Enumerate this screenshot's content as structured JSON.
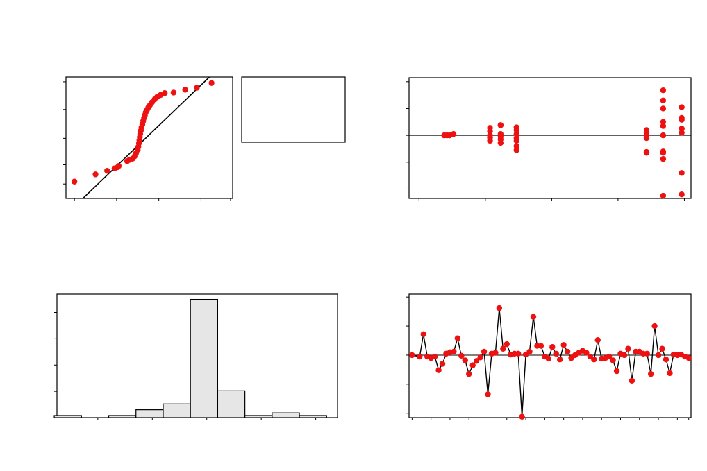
{
  "chart_data": [
    {
      "type": "scatter",
      "panel": "normal-probability-plot",
      "xlim": [
        -3.7,
        4.2
      ],
      "ylim": [
        -2.7,
        2.35
      ],
      "xticks": [
        -3.3,
        -1.3,
        0.7,
        2.7,
        4.1
      ],
      "yticks": [
        -2.1,
        -1.3,
        -0.2,
        1.0,
        2.15
      ],
      "fit_line": {
        "x": [
          -2.9,
          3.1
        ],
        "y": [
          -2.7,
          2.35
        ]
      },
      "legend_box": "right",
      "points": {
        "x": [
          -3.3,
          -2.3,
          -1.75,
          -1.4,
          -1.25,
          -1.2,
          -0.8,
          -0.7,
          -0.55,
          -0.45,
          -0.38,
          -0.3,
          -0.27,
          -0.24,
          -0.22,
          -0.2,
          -0.18,
          -0.15,
          -0.12,
          -0.08,
          -0.04,
          0.0,
          0.04,
          0.08,
          0.14,
          0.2,
          0.28,
          0.38,
          0.5,
          0.62,
          0.78,
          0.98,
          1.4,
          1.95,
          2.5,
          3.2
        ],
        "y": [
          -2.0,
          -1.7,
          -1.55,
          -1.45,
          -1.4,
          -1.35,
          -1.15,
          -1.1,
          -1.05,
          -0.95,
          -0.82,
          -0.68,
          -0.55,
          -0.4,
          -0.28,
          -0.15,
          -0.02,
          0.12,
          0.25,
          0.38,
          0.52,
          0.65,
          0.76,
          0.88,
          0.98,
          1.08,
          1.18,
          1.3,
          1.42,
          1.52,
          1.6,
          1.68,
          1.7,
          1.82,
          1.9,
          2.1
        ]
      }
    },
    {
      "type": "scatter",
      "panel": "residuals-vs-fits",
      "xlim": [
        -0.15,
        4.1
      ],
      "ylim": [
        -2.35,
        2.15
      ],
      "xticks": [
        0.0,
        1.0,
        2.0,
        3.0,
        4.0
      ],
      "yticks": [
        -2.0,
        -1.0,
        0.0,
        1.0,
        2.0
      ],
      "reference_y": 0,
      "points": {
        "x": [
          0.38,
          0.42,
          0.46,
          0.52,
          1.07,
          1.07,
          1.07,
          1.07,
          1.07,
          1.23,
          1.23,
          1.23,
          1.23,
          1.23,
          1.23,
          1.47,
          1.47,
          1.47,
          1.47,
          1.47,
          1.47,
          1.47,
          3.43,
          3.43,
          3.43,
          3.43,
          3.43,
          3.43,
          3.68,
          3.68,
          3.68,
          3.68,
          3.68,
          3.68,
          3.68,
          3.68,
          3.68,
          3.68,
          3.96,
          3.96,
          3.96,
          3.96,
          3.96,
          3.96,
          3.96,
          3.96
        ],
        "y": [
          0.0,
          0.0,
          0.0,
          0.05,
          0.28,
          0.15,
          0.0,
          -0.08,
          -0.2,
          0.38,
          0.38,
          0.05,
          -0.05,
          -0.15,
          -0.28,
          0.3,
          0.2,
          0.05,
          -0.1,
          -0.2,
          -0.4,
          -0.55,
          0.2,
          0.1,
          0.0,
          -0.1,
          -0.62,
          -0.65,
          1.68,
          1.3,
          0.5,
          0.35,
          0.0,
          -0.6,
          -0.65,
          -0.88,
          -2.25,
          1.0,
          0.1,
          0.25,
          0.25,
          0.58,
          0.65,
          -1.4,
          -2.2,
          1.05
        ]
      }
    },
    {
      "type": "bar",
      "panel": "histogram",
      "bins": [
        -4.5,
        -3.5,
        -2.5,
        -1.5,
        -0.5,
        0.5,
        1.5,
        2.5,
        3.5,
        4.5
      ],
      "values": [
        0.8,
        0,
        0.8,
        3.0,
        5.2,
        45,
        10.2,
        0.8,
        1.8,
        0.8
      ],
      "xlim": [
        -4.9,
        5.4
      ],
      "ylim": [
        0,
        47
      ],
      "yticks": [
        0,
        10,
        20,
        30,
        40
      ],
      "xticks": [
        -3.4,
        -1.4,
        0.6,
        2.6,
        4.6
      ]
    },
    {
      "type": "line",
      "panel": "residuals-vs-order",
      "xlim": [
        0.2,
        74.6
      ],
      "ylim": [
        -2.15,
        2.1
      ],
      "reference_y": 0,
      "yticks": [
        -2.0,
        -1.0,
        0.0,
        1.0,
        2.0
      ],
      "xticks": [
        1,
        6,
        11,
        16,
        21,
        26,
        31,
        36,
        41,
        46,
        51,
        56,
        61,
        66,
        71,
        74
      ],
      "x": [
        1,
        3,
        4,
        5,
        6,
        7,
        8,
        9,
        10,
        11,
        12,
        13,
        14,
        15,
        16,
        17,
        18,
        19,
        20,
        21,
        22,
        23,
        24,
        25,
        26,
        27,
        28,
        29,
        30,
        31,
        32,
        33,
        34,
        35,
        36,
        37,
        38,
        39,
        40,
        41,
        42,
        43,
        44,
        45,
        46,
        47,
        48,
        49,
        50,
        51,
        52,
        53,
        54,
        55,
        56,
        57,
        58,
        59,
        60,
        61,
        62,
        63,
        64,
        65,
        66,
        67,
        68,
        69,
        70,
        71,
        72,
        73,
        74
      ],
      "y": [
        0.0,
        -0.05,
        0.72,
        -0.05,
        -0.1,
        -0.05,
        -0.52,
        -0.3,
        0.05,
        0.1,
        0.12,
        0.58,
        -0.02,
        -0.18,
        -0.65,
        -0.35,
        -0.2,
        -0.08,
        0.12,
        -1.35,
        0.05,
        0.08,
        1.62,
        0.22,
        0.38,
        0.02,
        0.05,
        0.05,
        -2.12,
        0.02,
        0.12,
        1.32,
        0.32,
        0.32,
        -0.05,
        -0.12,
        0.28,
        0.05,
        -0.15,
        0.35,
        0.12,
        -0.1,
        0.0,
        0.08,
        0.15,
        0.08,
        -0.05,
        -0.15,
        0.52,
        -0.12,
        -0.1,
        -0.05,
        -0.18,
        -0.55,
        0.05,
        0.0,
        0.22,
        -0.88,
        0.12,
        0.12,
        0.05,
        0.05,
        -0.65,
        1.0,
        0.0,
        0.22,
        -0.15,
        -0.62,
        0.02,
        0.0,
        0.02,
        -0.05,
        -0.1
      ]
    }
  ],
  "colors": {
    "marker": "#ee1111",
    "line": "#000000",
    "bar_fill": "#e6e6e6"
  }
}
